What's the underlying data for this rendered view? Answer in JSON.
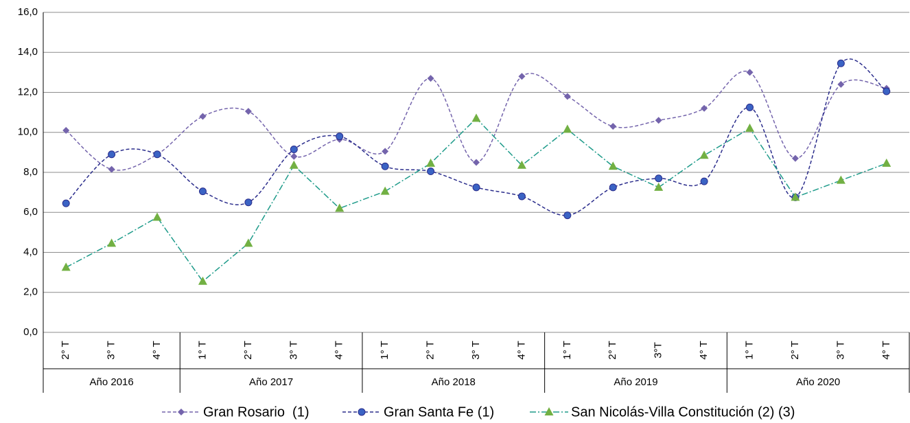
{
  "chart_data": {
    "type": "line",
    "categories": [
      "2° T",
      "3° T",
      "4° T",
      "1° T",
      "2° T",
      "3° T",
      "4° T",
      "1° T",
      "2° T",
      "3° T",
      "4° T",
      "1° T",
      "2° T",
      "3°T",
      "4° T",
      "1° T",
      "2° T",
      "3° T",
      "4° T"
    ],
    "groups": [
      {
        "name": "Año 2016",
        "count": 3
      },
      {
        "name": "Año 2017",
        "count": 4
      },
      {
        "name": "Año 2018",
        "count": 4
      },
      {
        "name": "Año 2019",
        "count": 4
      },
      {
        "name": "Año 2020",
        "count": 4
      }
    ],
    "series": [
      {
        "name": "Gran Rosario  (1)",
        "color": "#7464ac",
        "marker": "diamond",
        "dash": "5,3",
        "smooth": true,
        "values": [
          10.1,
          8.15,
          8.9,
          10.8,
          11.05,
          8.8,
          9.65,
          9.05,
          12.7,
          8.5,
          12.8,
          11.8,
          10.3,
          10.6,
          11.2,
          13.0,
          8.7,
          12.4,
          12.2
        ]
      },
      {
        "name": "Gran Santa Fe (1)",
        "color": "#2b2d8c",
        "marker_fill": "#3b63c4",
        "marker": "circle",
        "dash": "5,3",
        "smooth": true,
        "values": [
          6.45,
          8.9,
          8.9,
          7.05,
          6.5,
          9.15,
          9.8,
          8.3,
          8.05,
          7.25,
          6.8,
          5.85,
          7.25,
          7.7,
          7.55,
          11.25,
          6.75,
          13.45,
          12.05
        ]
      },
      {
        "name": "San Nicolás-Villa Constitución (2) (3)",
        "color": "#1e9b8a",
        "marker_fill": "#72b043",
        "marker": "triangle",
        "dash": "9,3,2,3",
        "smooth": false,
        "values": [
          3.25,
          4.45,
          5.75,
          2.55,
          4.45,
          8.35,
          6.2,
          7.05,
          8.45,
          10.7,
          8.35,
          10.15,
          8.3,
          7.25,
          8.85,
          10.2,
          6.75,
          7.6,
          8.45
        ]
      }
    ],
    "ylim": [
      0,
      16
    ],
    "yticks": [
      {
        "value": 0,
        "label": "0,0"
      },
      {
        "value": 2,
        "label": "2,0"
      },
      {
        "value": 4,
        "label": "4,0"
      },
      {
        "value": 6,
        "label": "6,0"
      },
      {
        "value": 8,
        "label": "8,0"
      },
      {
        "value": 10,
        "label": "10,0"
      },
      {
        "value": 12,
        "label": "12,0"
      },
      {
        "value": 14,
        "label": "14,0"
      },
      {
        "value": 16,
        "label": "16,0"
      }
    ],
    "grid": true,
    "legend": "bottom"
  }
}
